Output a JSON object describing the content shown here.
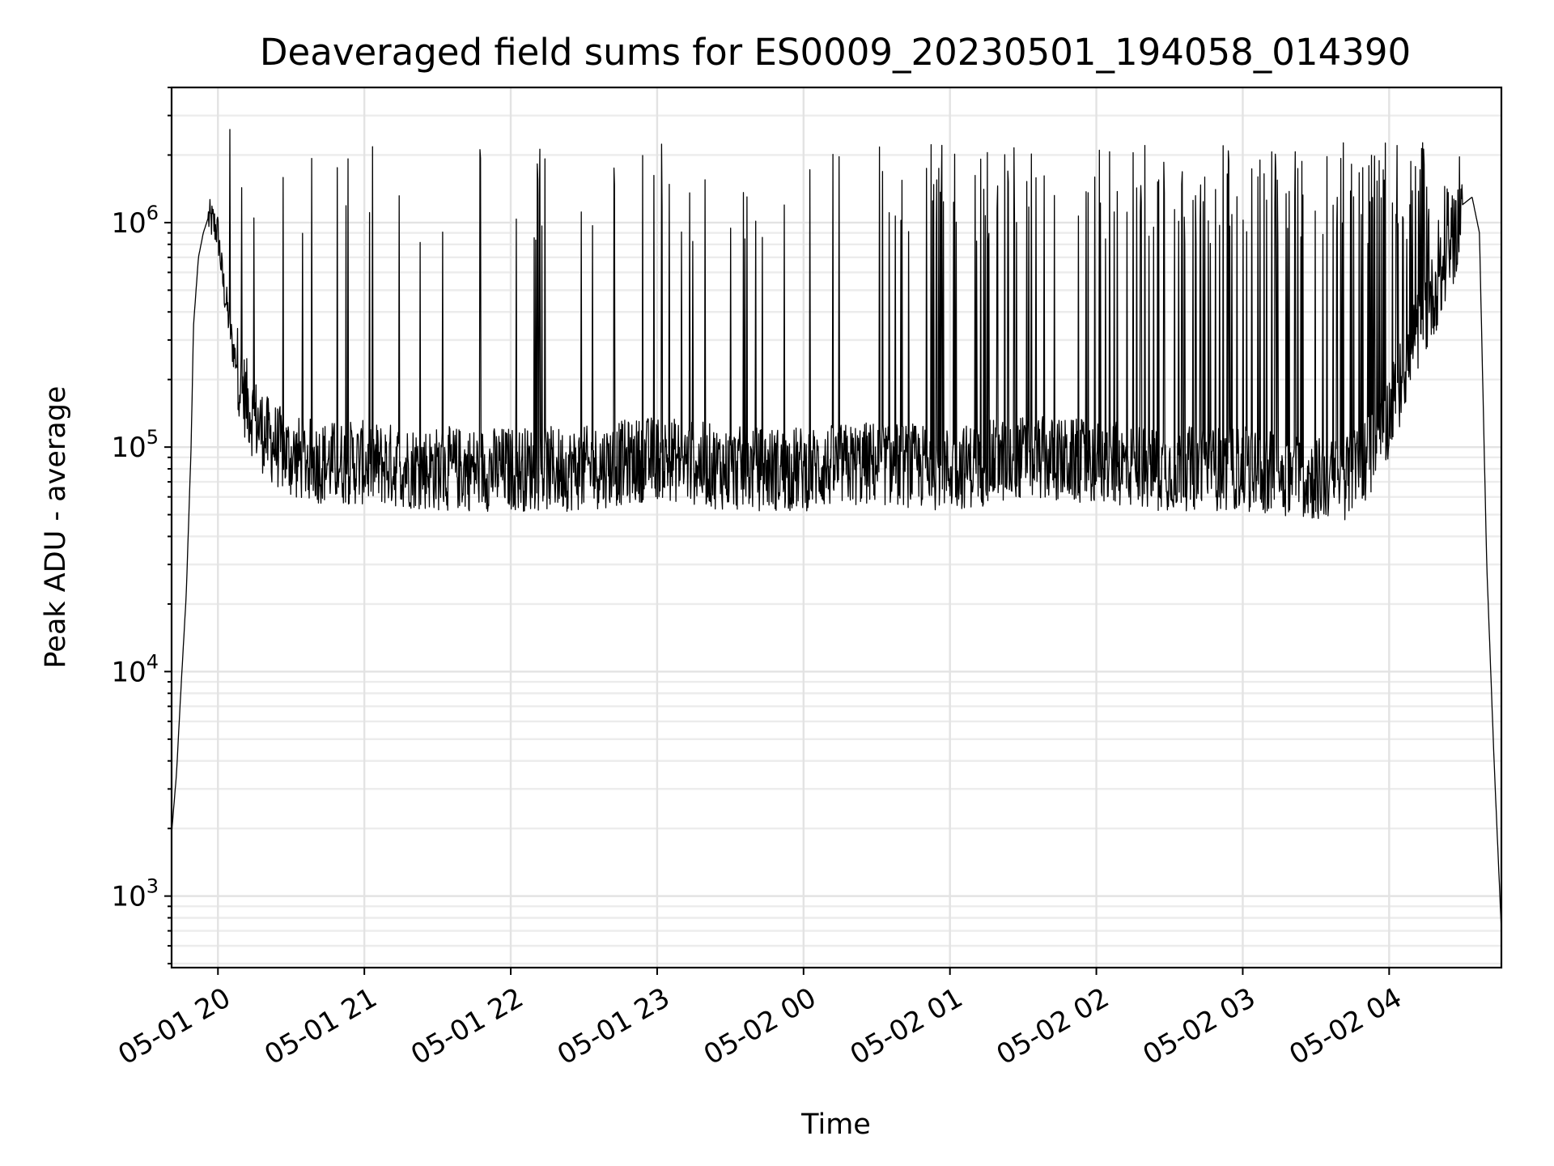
{
  "chart_data": {
    "type": "line",
    "title": "Deaveraged field sums for ES0009_20230501_194058_014390",
    "xlabel": "Time",
    "ylabel": "Peak ADU - average",
    "x_axis": {
      "kind": "datetime",
      "range": [
        "2023-05-01 19:41",
        "2023-05-02 04:46"
      ],
      "tick_values": [
        "2023-05-01 20:00",
        "2023-05-01 21:00",
        "2023-05-01 22:00",
        "2023-05-01 23:00",
        "2023-05-02 00:00",
        "2023-05-02 01:00",
        "2023-05-02 02:00",
        "2023-05-02 03:00",
        "2023-05-02 04:00"
      ],
      "tick_labels": [
        "05-01 20",
        "05-01 21",
        "05-01 22",
        "05-01 23",
        "05-02 00",
        "05-02 01",
        "05-02 02",
        "05-02 03",
        "05-02 04"
      ],
      "tick_label_rotation": 30
    },
    "y_axis": {
      "scale": "log",
      "range": [
        480,
        4000000
      ],
      "tick_values": [
        1000,
        10000,
        100000,
        1000000
      ],
      "tick_labels": [
        {
          "base": "10",
          "exp": "3"
        },
        {
          "base": "10",
          "exp": "4"
        },
        {
          "base": "10",
          "exp": "5"
        },
        {
          "base": "10",
          "exp": "6"
        }
      ]
    },
    "grid": "both (major and minor)",
    "series_color": "#000000",
    "series": [
      {
        "name": "",
        "x": [
          "2023-05-01 19:41",
          "2023-05-01 19:43",
          "2023-05-01 19:45",
          "2023-05-01 19:47",
          "2023-05-01 19:49",
          "2023-05-01 19:50",
          "2023-05-01 19:52",
          "2023-05-01 19:54",
          "2023-05-01 19:56",
          "2023-05-01 19:58",
          "2023-05-01 20:00",
          "2023-05-01 20:02",
          "2023-05-01 20:04",
          "2023-05-01 20:06",
          "2023-05-01 20:08",
          "2023-05-01 20:10",
          "2023-05-01 20:14",
          "2023-05-01 20:20",
          "2023-05-01 20:30",
          "2023-05-01 20:45",
          "2023-05-01 21:00",
          "2023-05-01 21:30",
          "2023-05-01 22:00",
          "2023-05-01 22:30",
          "2023-05-01 23:00",
          "2023-05-01 23:30",
          "2023-05-02 00:00",
          "2023-05-02 00:30",
          "2023-05-02 01:00",
          "2023-05-02 01:30",
          "2023-05-02 02:00",
          "2023-05-02 02:30",
          "2023-05-02 03:00",
          "2023-05-02 03:20",
          "2023-05-02 03:40",
          "2023-05-02 03:55",
          "2023-05-02 04:05",
          "2023-05-02 04:15",
          "2023-05-02 04:25",
          "2023-05-02 04:30",
          "2023-05-02 04:34",
          "2023-05-02 04:37",
          "2023-05-02 04:40",
          "2023-05-02 04:43",
          "2023-05-02 04:46"
        ],
        "y": [
          1900,
          3500,
          9000,
          22000,
          100000,
          350000,
          700000,
          900000,
          1050000,
          1000000,
          900000,
          550000,
          400000,
          280000,
          230000,
          180000,
          140000,
          110000,
          90000,
          85000,
          85000,
          80000,
          80000,
          80000,
          90000,
          80000,
          80000,
          85000,
          80000,
          90000,
          85000,
          80000,
          80000,
          75000,
          70000,
          100000,
          200000,
          400000,
          700000,
          1200000,
          1300000,
          900000,
          30000,
          4000,
          700
        ]
      }
    ],
    "spike_peaks": {
      "description": "frequent narrow spikes rising from the ~1e5 floor",
      "max_value": 2600000,
      "typical_peak": 1500000,
      "floor_min": 40000
    }
  }
}
